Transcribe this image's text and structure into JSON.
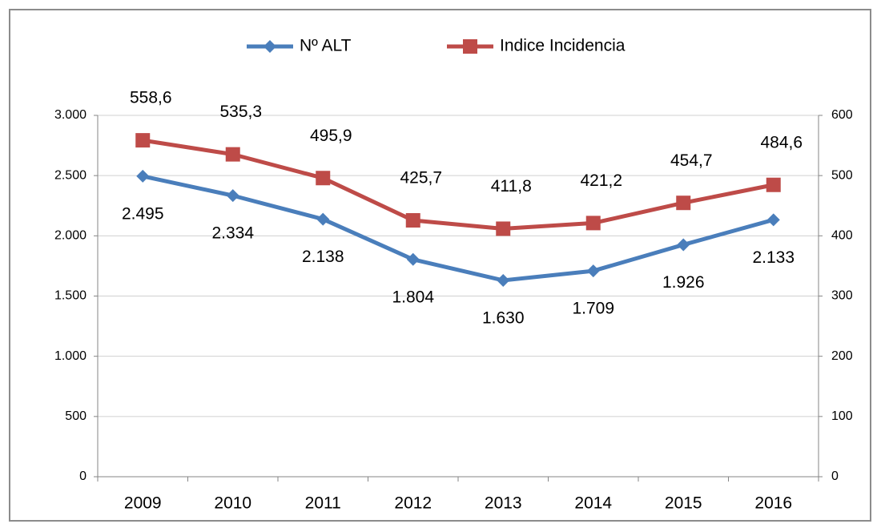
{
  "chart_data": {
    "type": "line",
    "categories": [
      "2009",
      "2010",
      "2011",
      "2012",
      "2013",
      "2014",
      "2015",
      "2016"
    ],
    "series": [
      {
        "name": "Nº ALT",
        "color": "#4a7ebb",
        "marker": "diamond",
        "values": [
          2495,
          2334,
          2138,
          1804,
          1630,
          1709,
          1926,
          2133
        ],
        "value_labels": [
          "2.495",
          "2.334",
          "2.138",
          "1.804",
          "1.630",
          "1.709",
          "1.926",
          "2.133"
        ]
      },
      {
        "name": "Indice Incidencia",
        "color": "#be4b48",
        "marker": "square",
        "axis": "y2",
        "values": [
          558.6,
          535.3,
          495.9,
          425.7,
          411.8,
          421.2,
          454.7,
          484.6
        ],
        "value_labels": [
          "558,6",
          "535,3",
          "495,9",
          "425,7",
          "411,8",
          "421,2",
          "454,7",
          "484,6"
        ]
      }
    ],
    "ylim": [
      0,
      3000
    ],
    "yticks": [
      0,
      500,
      {
        "value": 1000,
        "label": "1.000"
      },
      {
        "value": 1500,
        "label": "1.500"
      },
      {
        "value": 2000,
        "label": "2.000"
      },
      {
        "value": 2500,
        "label": "2.500"
      },
      {
        "value": 3000,
        "label": "3.000"
      }
    ],
    "y2lim": [
      0,
      600
    ],
    "y2ticks": [
      0,
      100,
      200,
      300,
      400,
      500,
      600
    ],
    "grid": true,
    "legend": "top"
  }
}
